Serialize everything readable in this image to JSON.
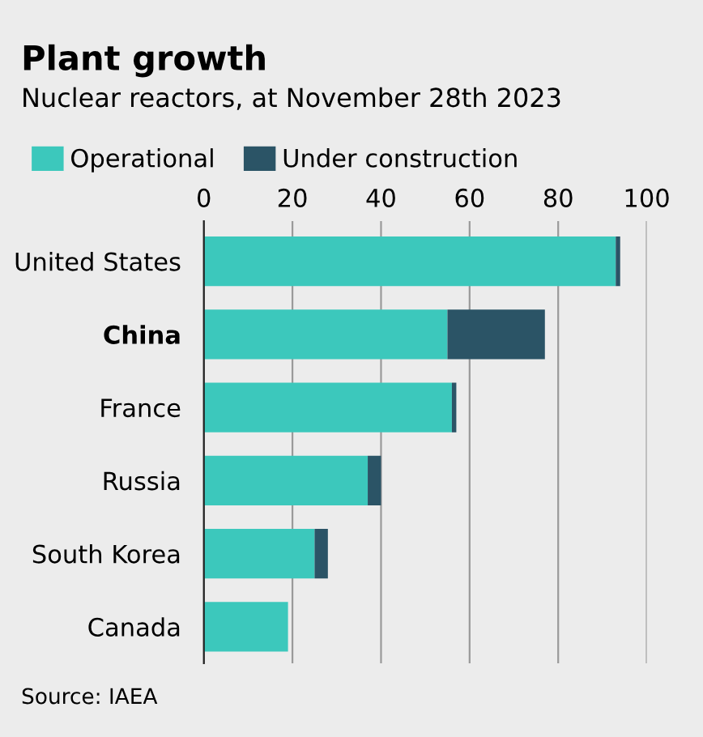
{
  "chart_data": {
    "type": "bar",
    "orientation": "horizontal",
    "stacked": true,
    "title": "Plant growth",
    "subtitle": "Nuclear reactors, at November 28th 2023",
    "categories": [
      "United States",
      "China",
      "France",
      "Russia",
      "South Korea",
      "Canada"
    ],
    "series": [
      {
        "name": "Operational",
        "color": "#3cc8bc",
        "values": [
          93,
          55,
          56,
          37,
          25,
          19
        ]
      },
      {
        "name": "Under construction",
        "color": "#2b5466",
        "values": [
          1,
          22,
          1,
          3,
          3,
          0
        ]
      }
    ],
    "xlim": [
      0,
      100
    ],
    "xticks": [
      0,
      20,
      40,
      60,
      80,
      100
    ],
    "grid": "x",
    "legend": "top left",
    "annotations": [
      "Source: IAEA"
    ]
  }
}
